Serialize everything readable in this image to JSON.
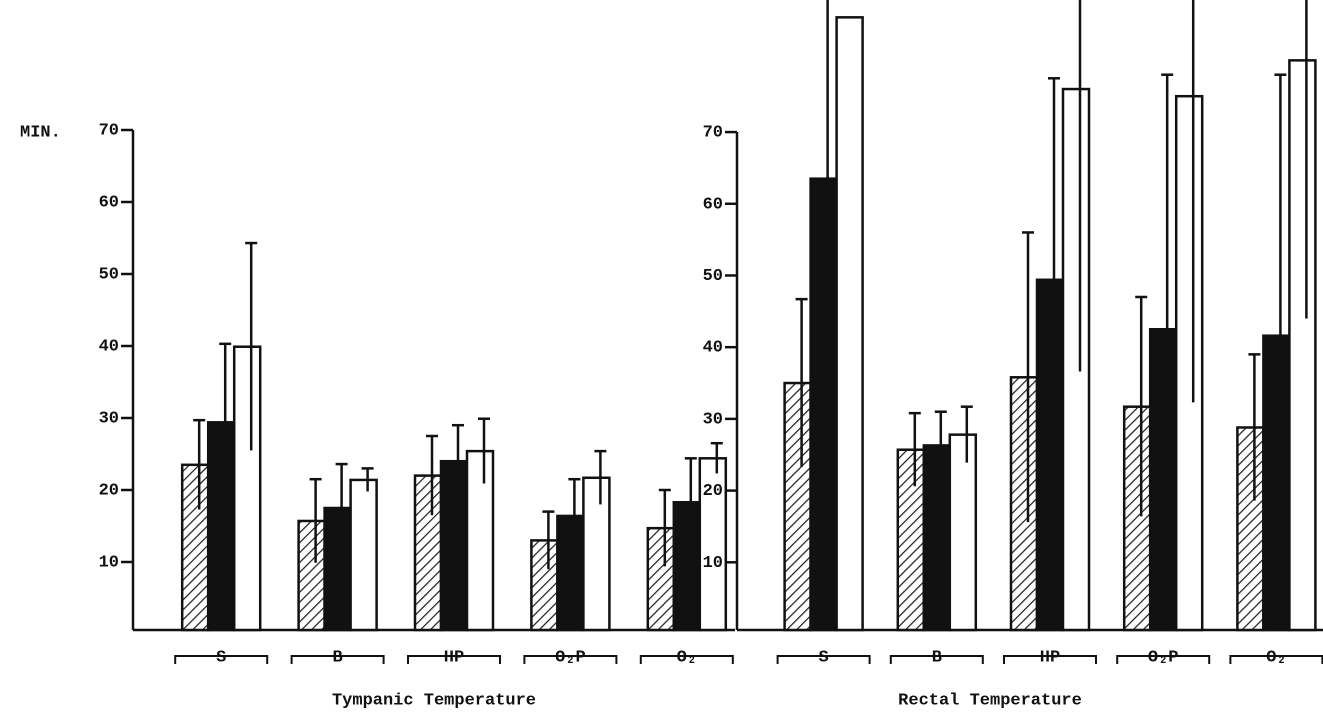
{
  "chart_data": [
    {
      "type": "bar",
      "title": "Tympanic Temperature",
      "ylabel": "MIN.",
      "categories": [
        "S",
        "B",
        "HP",
        "O₂P",
        "O₂"
      ],
      "series": [
        {
          "color": "#222222",
          "pattern": "hatch",
          "values": [
            23.5,
            15.7,
            22,
            13,
            14.7
          ],
          "errors": [
            6.2,
            5.8,
            5.5,
            4,
            5.3
          ]
        },
        {
          "color": "#111111",
          "pattern": "solid",
          "values": [
            29.4,
            17.5,
            24,
            16.4,
            18.3
          ],
          "errors": [
            10.9,
            6.1,
            5,
            5.1,
            6.1
          ]
        },
        {
          "color": "#ffffff",
          "pattern": "solid",
          "values": [
            39.9,
            21.4,
            25.4,
            21.7,
            24.4
          ],
          "errors": [
            14.4,
            1.6,
            4.5,
            3.7,
            2.1
          ]
        }
      ],
      "ylim": [
        0,
        70
      ],
      "yticks": [
        10,
        20,
        30,
        40,
        50,
        60,
        70
      ]
    },
    {
      "type": "bar",
      "title": "Rectal Temperature",
      "categories": [
        "S",
        "B",
        "HP",
        "O₂P",
        "O₂"
      ],
      "series": [
        {
          "color": "#222222",
          "pattern": "hatch",
          "values": [
            35,
            25.7,
            35.8,
            31.7,
            28.8
          ],
          "errors": [
            11.7,
            5.1,
            20.2,
            15.3,
            10.2
          ]
        },
        {
          "color": "#111111",
          "pattern": "solid",
          "values": [
            63.5,
            26.3,
            49.4,
            42.5,
            41.6
          ],
          "errors": [
            45,
            4.7,
            28.1,
            35.5,
            36.4
          ]
        },
        {
          "color": "#ffffff",
          "pattern": "solid",
          "values": [
            86,
            27.8,
            76,
            75,
            80
          ],
          "errors": [
            null,
            3.9,
            39.4,
            42.7,
            36
          ]
        }
      ],
      "ylim": [
        0,
        88
      ],
      "yticks": [
        10,
        20,
        30,
        40,
        50,
        60,
        70
      ]
    }
  ]
}
